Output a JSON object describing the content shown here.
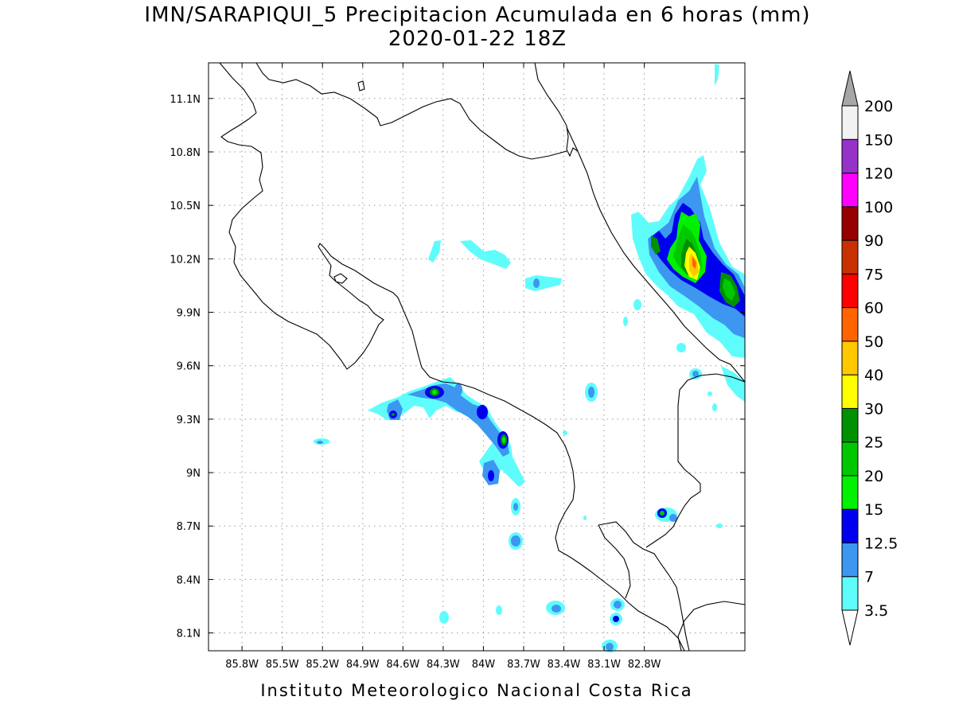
{
  "title": {
    "line1": "IMN/SARAPIQUI_5 Precipitacion Acumulada en 6 horas (mm)",
    "line2": "2020-01-22 18Z"
  },
  "credit": "Instituto Meteorologico Nacional Costa Rica",
  "map": {
    "lon_range": [
      -86.05,
      -82.05
    ],
    "lat_range": [
      8.0,
      11.3
    ],
    "lon_ticks": [
      {
        "value": -85.8,
        "label": "85.8W"
      },
      {
        "value": -85.5,
        "label": "85.5W"
      },
      {
        "value": -85.2,
        "label": "85.2W"
      },
      {
        "value": -84.9,
        "label": "84.9W"
      },
      {
        "value": -84.6,
        "label": "84.6W"
      },
      {
        "value": -84.3,
        "label": "84.3W"
      },
      {
        "value": -84.0,
        "label": "84W"
      },
      {
        "value": -83.7,
        "label": "83.7W"
      },
      {
        "value": -83.4,
        "label": "83.4W"
      },
      {
        "value": -83.1,
        "label": "83.1W"
      },
      {
        "value": -82.8,
        "label": "82.8W"
      }
    ],
    "lat_ticks": [
      {
        "value": 8.1,
        "label": "8.1N"
      },
      {
        "value": 8.4,
        "label": "8.4N"
      },
      {
        "value": 8.7,
        "label": "8.7N"
      },
      {
        "value": 9.0,
        "label": "9N"
      },
      {
        "value": 9.3,
        "label": "9.3N"
      },
      {
        "value": 9.6,
        "label": "9.6N"
      },
      {
        "value": 9.9,
        "label": "9.9N"
      },
      {
        "value": 10.2,
        "label": "10.2N"
      },
      {
        "value": 10.5,
        "label": "10.5N"
      },
      {
        "value": 10.8,
        "label": "10.8N"
      },
      {
        "value": 11.1,
        "label": "11.1N"
      }
    ],
    "grid": true,
    "coastline_color": "#000000"
  },
  "colorbar": {
    "placement": "right",
    "levels": [
      {
        "label": "3.5",
        "color": "#5ffcfc"
      },
      {
        "label": "7",
        "color": "#3d96f0"
      },
      {
        "label": "12.5",
        "color": "#0000f0"
      },
      {
        "label": "15",
        "color": "#00f000"
      },
      {
        "label": "20",
        "color": "#00c800"
      },
      {
        "label": "25",
        "color": "#009100"
      },
      {
        "label": "30",
        "color": "#ffff00"
      },
      {
        "label": "40",
        "color": "#ffc800"
      },
      {
        "label": "50",
        "color": "#ff6400"
      },
      {
        "label": "60",
        "color": "#ff0000"
      },
      {
        "label": "75",
        "color": "#c83200"
      },
      {
        "label": "90",
        "color": "#960000"
      },
      {
        "label": "100",
        "color": "#ff00ff"
      },
      {
        "label": "120",
        "color": "#9632c8"
      },
      {
        "label": "150",
        "color": "#f2f2f2"
      },
      {
        "label": "200",
        "color": ""
      }
    ],
    "top_arrow_color": "#a6a6a6",
    "bottom_arrow_color": "#ffffff"
  }
}
